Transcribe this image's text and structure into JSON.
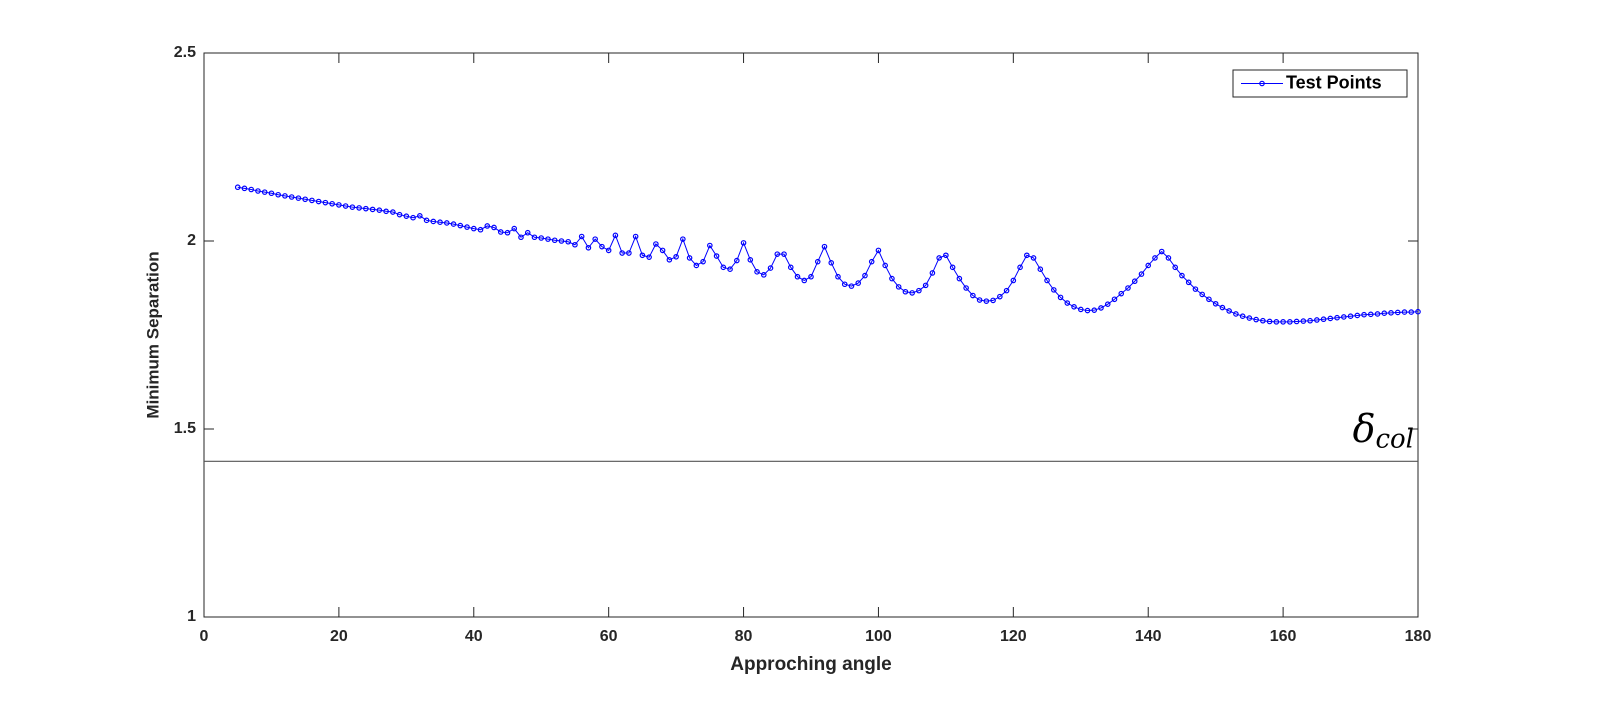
{
  "chart_data": {
    "type": "line",
    "xlabel": "Approching angle",
    "ylabel": "Minimum Separation",
    "x": [
      5,
      6,
      7,
      8,
      9,
      10,
      11,
      12,
      13,
      14,
      15,
      16,
      17,
      18,
      19,
      20,
      21,
      22,
      23,
      24,
      25,
      26,
      27,
      28,
      29,
      30,
      31,
      32,
      33,
      34,
      35,
      36,
      37,
      38,
      39,
      40,
      41,
      42,
      43,
      44,
      45,
      46,
      47,
      48,
      49,
      50,
      51,
      52,
      53,
      54,
      55,
      56,
      57,
      58,
      59,
      60,
      61,
      62,
      63,
      64,
      65,
      66,
      67,
      68,
      69,
      70,
      71,
      72,
      73,
      74,
      75,
      76,
      77,
      78,
      79,
      80,
      81,
      82,
      83,
      84,
      85,
      86,
      87,
      88,
      89,
      90,
      91,
      92,
      93,
      94,
      95,
      96,
      97,
      98,
      99,
      100,
      101,
      102,
      103,
      104,
      105,
      106,
      107,
      108,
      109,
      110,
      111,
      112,
      113,
      114,
      115,
      116,
      117,
      118,
      119,
      120,
      121,
      122,
      123,
      124,
      125,
      126,
      127,
      128,
      129,
      130,
      131,
      132,
      133,
      134,
      135,
      136,
      137,
      138,
      139,
      140,
      141,
      142,
      143,
      144,
      145,
      146,
      147,
      148,
      149,
      150,
      151,
      152,
      153,
      154,
      155,
      156,
      157,
      158,
      159,
      160,
      161,
      162,
      163,
      164,
      165,
      166,
      167,
      168,
      169,
      170,
      171,
      172,
      173,
      174,
      175,
      176,
      177,
      178,
      179,
      180
    ],
    "series": [
      {
        "name": "Test Points",
        "color": "#0000ff",
        "values": [
          2.143,
          2.14,
          2.137,
          2.133,
          2.13,
          2.127,
          2.123,
          2.12,
          2.117,
          2.114,
          2.111,
          2.108,
          2.105,
          2.102,
          2.099,
          2.096,
          2.093,
          2.09,
          2.088,
          2.086,
          2.084,
          2.082,
          2.079,
          2.077,
          2.07,
          2.066,
          2.062,
          2.067,
          2.055,
          2.052,
          2.05,
          2.048,
          2.045,
          2.041,
          2.037,
          2.033,
          2.03,
          2.04,
          2.036,
          2.024,
          2.022,
          2.033,
          2.01,
          2.022,
          2.01,
          2.008,
          2.005,
          2.002,
          2.0,
          1.998,
          1.99,
          2.012,
          1.982,
          2.005,
          1.985,
          1.975,
          2.015,
          1.968,
          1.968,
          2.012,
          1.962,
          1.957,
          1.992,
          1.975,
          1.95,
          1.958,
          2.005,
          1.955,
          1.935,
          1.945,
          1.988,
          1.96,
          1.93,
          1.925,
          1.948,
          1.995,
          1.95,
          1.918,
          1.91,
          1.928,
          1.965,
          1.965,
          1.93,
          1.905,
          1.895,
          1.905,
          1.945,
          1.985,
          1.942,
          1.905,
          1.885,
          1.88,
          1.888,
          1.908,
          1.945,
          1.975,
          1.935,
          1.9,
          1.878,
          1.865,
          1.862,
          1.868,
          1.882,
          1.915,
          1.955,
          1.962,
          1.93,
          1.9,
          1.875,
          1.855,
          1.843,
          1.84,
          1.842,
          1.852,
          1.868,
          1.895,
          1.93,
          1.962,
          1.955,
          1.925,
          1.895,
          1.87,
          1.85,
          1.835,
          1.825,
          1.818,
          1.815,
          1.816,
          1.822,
          1.832,
          1.845,
          1.86,
          1.875,
          1.893,
          1.912,
          1.935,
          1.955,
          1.972,
          1.955,
          1.93,
          1.908,
          1.89,
          1.872,
          1.858,
          1.845,
          1.833,
          1.823,
          1.814,
          1.806,
          1.8,
          1.795,
          1.791,
          1.788,
          1.786,
          1.785,
          1.785,
          1.785,
          1.786,
          1.787,
          1.788,
          1.79,
          1.792,
          1.794,
          1.796,
          1.798,
          1.8,
          1.802,
          1.804,
          1.805,
          1.806,
          1.808,
          1.809,
          1.81,
          1.811,
          1.811,
          1.812
        ]
      }
    ],
    "xlim": [
      0,
      180
    ],
    "xticks": [
      0,
      20,
      40,
      60,
      80,
      100,
      120,
      140,
      160,
      180
    ],
    "ylim": [
      1,
      2.5
    ],
    "yticks": [
      1,
      1.5,
      2,
      2.5
    ],
    "legend": "northeast",
    "annotation": {
      "y": 1.414,
      "symbol": "δ",
      "subscript": "col"
    }
  }
}
